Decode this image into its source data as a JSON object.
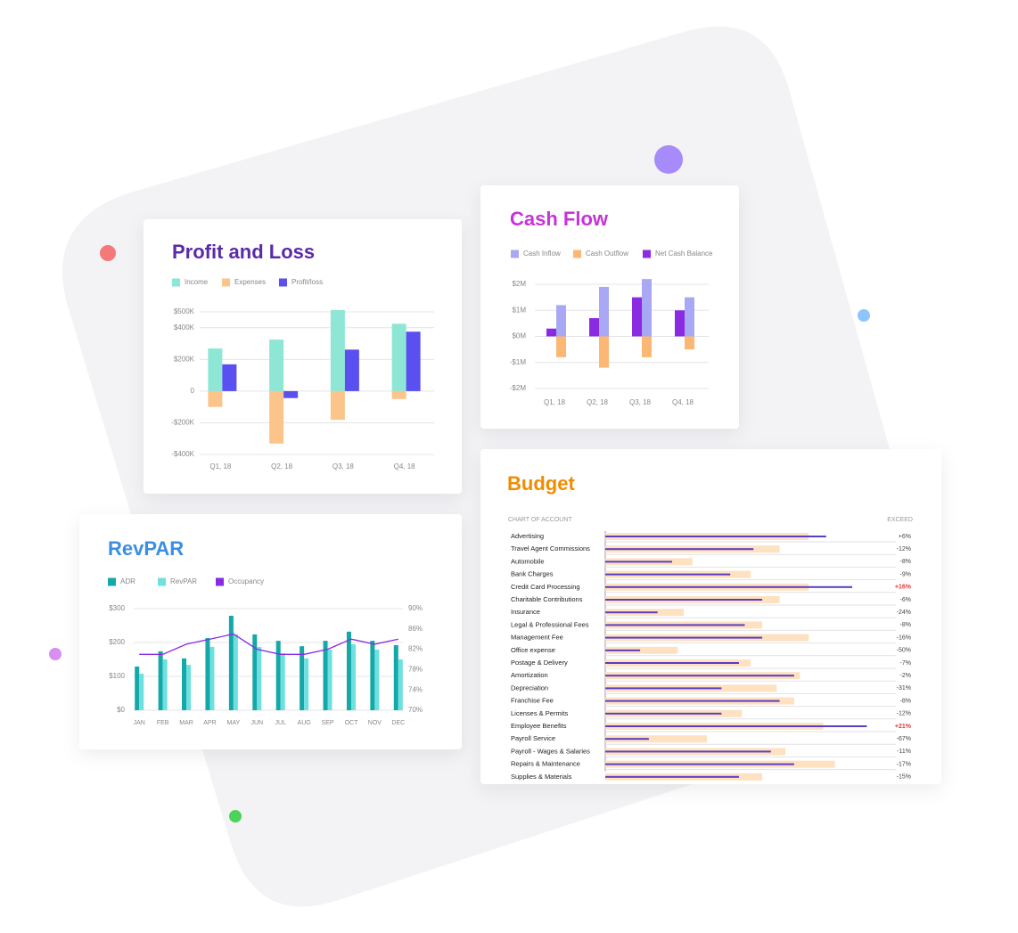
{
  "chart_data": [
    {
      "type": "bar",
      "title": "Profit and Loss",
      "categories": [
        "Q1, 18",
        "Q2, 18",
        "Q3, 18",
        "Q4, 18"
      ],
      "series": [
        {
          "name": "Income",
          "color": "#8ee6d4",
          "values": [
            269000,
            325000,
            512000,
            425000
          ]
        },
        {
          "name": "Expenses",
          "color": "#fbc48a",
          "values": [
            -100000,
            -331000,
            -181000,
            -50000
          ]
        },
        {
          "name": "Profit/loss",
          "color": "#5a4ff0",
          "values": [
            169000,
            -44000,
            262000,
            375000
          ]
        }
      ],
      "ylim": [
        -400000,
        500000
      ],
      "yticks": [
        {
          "value": -400000,
          "label": "-$400K"
        },
        {
          "value": -200000,
          "label": "-$200K"
        },
        {
          "value": 0,
          "label": "0"
        },
        {
          "value": 200000,
          "label": "$200K"
        },
        {
          "value": 400000,
          "label": "$400K"
        },
        {
          "value": 500000,
          "label": "$500K"
        }
      ],
      "grid": true,
      "title_color": "#5b2aa8"
    },
    {
      "type": "bar",
      "title": "Cash Flow",
      "categories": [
        "Q1, 18",
        "Q2, 18",
        "Q3, 18",
        "Q4, 18"
      ],
      "series": [
        {
          "name": "Cash Inflow",
          "color": "#a9a8f5",
          "values": [
            1.2,
            1.9,
            2.2,
            1.5
          ]
        },
        {
          "name": "Cash Outflow",
          "color": "#fbb874",
          "values": [
            -0.8,
            -1.2,
            -0.8,
            -0.5
          ]
        },
        {
          "name": "Net Cash Balance",
          "color": "#8a2be2",
          "values": [
            0.3,
            0.7,
            1.5,
            1.0
          ]
        }
      ],
      "ylim": [
        -2,
        2
      ],
      "yticks": [
        {
          "value": -2,
          "label": "-$2M"
        },
        {
          "value": -1,
          "label": "-$1M"
        },
        {
          "value": 0,
          "label": "$0M"
        },
        {
          "value": 1,
          "label": "$1M"
        },
        {
          "value": 2,
          "label": "$2M"
        }
      ],
      "grid": true,
      "title_color": "#c633d8"
    },
    {
      "type": "bar-line",
      "title": "RevPAR",
      "categories": [
        "JAN",
        "FEB",
        "MAR",
        "APR",
        "MAY",
        "JUN",
        "JUL",
        "AUG",
        "SEP",
        "OCT",
        "NOV",
        "DEC"
      ],
      "series": [
        {
          "name": "ADR",
          "color": "#14a8a8",
          "values": [
            129,
            174,
            153,
            213,
            279,
            224,
            205,
            189,
            205,
            232,
            205,
            192
          ]
        },
        {
          "name": "RevPAR",
          "color": "#6fe0e0",
          "values": [
            108,
            150,
            134,
            187,
            224,
            187,
            168,
            153,
            179,
            195,
            179,
            150
          ]
        },
        {
          "name": "Occupancy",
          "color": "#8a2be2",
          "axis": "y2",
          "values": [
            81,
            81,
            83,
            84,
            85,
            82,
            81,
            81,
            82,
            84,
            83,
            84
          ]
        }
      ],
      "ylim": [
        0,
        300
      ],
      "yticks": [
        {
          "value": 0,
          "label": "$0"
        },
        {
          "value": 100,
          "label": "$100"
        },
        {
          "value": 200,
          "label": "$200"
        },
        {
          "value": 300,
          "label": "$300"
        }
      ],
      "y2lim": [
        70,
        90
      ],
      "y2ticks": [
        {
          "value": 70,
          "label": "70%"
        },
        {
          "value": 74,
          "label": "74%"
        },
        {
          "value": 78,
          "label": "78%"
        },
        {
          "value": 82,
          "label": "82%"
        },
        {
          "value": 86,
          "label": "86%"
        },
        {
          "value": 90,
          "label": "90%"
        }
      ],
      "grid": true,
      "title_color": "#3b8fe0"
    },
    {
      "type": "bullet",
      "title": "Budget",
      "column_labels": [
        "CHART OF ACCOUNT",
        "EXCEED"
      ],
      "categories": [
        "Advertising",
        "Travel Agent Commissions",
        "Automobile",
        "Bank Charges",
        "Credit Card Processing",
        "Charitable Contributions",
        "Insurance",
        "Legal & Professional Fees",
        "Management Fee",
        "Office expense",
        "Postage & Delivery",
        "Amortization",
        "Depreciation",
        "Franchise Fee",
        "Licenses & Permits",
        "Employee Benefits",
        "Payroll Service",
        "Payroll - Wages & Salaries",
        "Repairs & Maintenance",
        "Supplies & Materials"
      ],
      "series": [
        {
          "color": "#fde1c0",
          "values": [
            70,
            60,
            30,
            50,
            70,
            60,
            27,
            54,
            70,
            25,
            50,
            67,
            59,
            65,
            47,
            75,
            35,
            62,
            79,
            54
          ]
        },
        {
          "color": "#5b3cc4",
          "values": [
            76,
            51,
            23,
            43,
            85,
            54,
            18,
            48,
            54,
            12,
            46,
            65,
            40,
            60,
            40,
            90,
            15,
            57,
            65,
            46
          ]
        }
      ],
      "exceed": {
        "values": [
          6,
          -12,
          -8,
          -9,
          16,
          -6,
          -24,
          -8,
          -16,
          -50,
          -7,
          -2,
          -31,
          -8,
          -12,
          21,
          -67,
          -11,
          -17,
          -15
        ],
        "value_labels": [
          "+6%",
          "-12%",
          "-8%",
          "-9%",
          "+16%",
          "-6%",
          "-24%",
          "-8%",
          "-16%",
          "-50%",
          "-7%",
          "-2%",
          "-31%",
          "-8%",
          "-12%",
          "+21%",
          "-67%",
          "-11%",
          "-17%",
          "-15%"
        ]
      },
      "highlight_above": 10,
      "highlight_color": "#e53935",
      "xlim": [
        0,
        100
      ],
      "title_color": "#f08c00"
    }
  ]
}
